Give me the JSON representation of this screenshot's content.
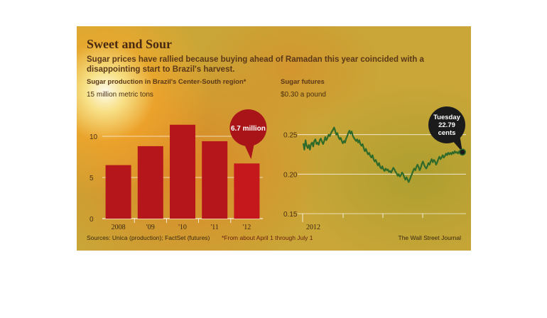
{
  "header": {
    "title": "Sweet and Sour",
    "subtitle": "Sugar prices have rallied because buying ahead of Ramadan this year coincided with a disappointing start to Brazil's harvest."
  },
  "left_chart": {
    "label": "Sugar production in Brazil's Center-South region*",
    "unit_text": "15 million metric tons"
  },
  "right_chart": {
    "label": "Sugar futures",
    "unit_text": "$0.30 a pound"
  },
  "footer": {
    "sources": "Sources: Unica (production); FactSet (futures)",
    "footnote": "*From about April 1 through July 1",
    "credit": "The Wall Street Journal"
  },
  "colors": {
    "bar": "#b5161b",
    "bar_highlight": "#c4181d",
    "line": "#2f6a2a",
    "callout_left": "#a81418",
    "callout_right": "#1b1b1b",
    "grid": "#ffffff"
  },
  "chart_data": [
    {
      "type": "bar",
      "title": "Sugar production in Brazil's Center-South region*",
      "categories": [
        "2008",
        "'09",
        "'10",
        "'11",
        "'12"
      ],
      "values": [
        6.5,
        8.8,
        11.4,
        9.4,
        6.7
      ],
      "ylim": [
        0,
        15
      ],
      "yticks": [
        0,
        5,
        10,
        15
      ],
      "ytick_labels": [
        "0",
        "5",
        "10",
        "15 million metric tons"
      ],
      "grid": true,
      "annotation": {
        "category": "'12",
        "text": "6.7 million"
      }
    },
    {
      "type": "line",
      "title": "Sugar futures",
      "x_label": "2012",
      "x": [
        0,
        1,
        2,
        3,
        4,
        5,
        6,
        7,
        8,
        9,
        10,
        11,
        12,
        13,
        14,
        15,
        16,
        17,
        18,
        19,
        20,
        21,
        22,
        23,
        24,
        25,
        26,
        27,
        28,
        29,
        30,
        31,
        32,
        33,
        34,
        35,
        36,
        37,
        38,
        39,
        40,
        41,
        42,
        43,
        44,
        45,
        46,
        47,
        48,
        49,
        50,
        51,
        52,
        53,
        54,
        55,
        56,
        57,
        58,
        59,
        60,
        61,
        62,
        63,
        64,
        65,
        66,
        67,
        68,
        69,
        70,
        71,
        72,
        73,
        74,
        75,
        76,
        77,
        78,
        79,
        80,
        81,
        82,
        83,
        84,
        85,
        86,
        87,
        88,
        89,
        90,
        91,
        92,
        93,
        94,
        95,
        96,
        97,
        98,
        99,
        100,
        101,
        102,
        103,
        104,
        105,
        106,
        107,
        108,
        109,
        110,
        111,
        112,
        113,
        114,
        115,
        116,
        117,
        118,
        119,
        120,
        121,
        122,
        123,
        124,
        125,
        126,
        127,
        128,
        129,
        130,
        131,
        132,
        133,
        134,
        135,
        136,
        137,
        138,
        139,
        140,
        141,
        142,
        143,
        144,
        145
      ],
      "values": [
        0.239,
        0.231,
        0.243,
        0.236,
        0.233,
        0.237,
        0.231,
        0.238,
        0.24,
        0.235,
        0.242,
        0.244,
        0.238,
        0.24,
        0.237,
        0.243,
        0.245,
        0.241,
        0.238,
        0.242,
        0.247,
        0.243,
        0.246,
        0.25,
        0.248,
        0.251,
        0.254,
        0.256,
        0.259,
        0.255,
        0.25,
        0.252,
        0.247,
        0.244,
        0.246,
        0.242,
        0.239,
        0.242,
        0.24,
        0.245,
        0.248,
        0.252,
        0.255,
        0.251,
        0.254,
        0.249,
        0.246,
        0.244,
        0.242,
        0.244,
        0.24,
        0.243,
        0.238,
        0.236,
        0.238,
        0.233,
        0.229,
        0.232,
        0.228,
        0.225,
        0.227,
        0.223,
        0.221,
        0.224,
        0.219,
        0.216,
        0.218,
        0.214,
        0.211,
        0.214,
        0.209,
        0.207,
        0.21,
        0.206,
        0.204,
        0.207,
        0.205,
        0.206,
        0.203,
        0.204,
        0.202,
        0.205,
        0.208,
        0.206,
        0.203,
        0.201,
        0.198,
        0.2,
        0.197,
        0.199,
        0.202,
        0.2,
        0.196,
        0.193,
        0.196,
        0.193,
        0.19,
        0.193,
        0.197,
        0.2,
        0.204,
        0.207,
        0.205,
        0.209,
        0.212,
        0.209,
        0.205,
        0.208,
        0.213,
        0.216,
        0.212,
        0.209,
        0.207,
        0.21,
        0.214,
        0.212,
        0.216,
        0.219,
        0.215,
        0.218,
        0.216,
        0.212,
        0.215,
        0.219,
        0.222,
        0.219,
        0.221,
        0.224,
        0.221,
        0.223,
        0.226,
        0.224,
        0.227,
        0.225,
        0.227,
        0.225,
        0.228,
        0.226,
        0.229,
        0.227,
        0.228,
        0.226,
        0.229,
        0.227,
        0.228,
        0.2279
      ],
      "ylim": [
        0.15,
        0.3
      ],
      "yticks": [
        0.15,
        0.2,
        0.25,
        0.3
      ],
      "ytick_labels": [
        "0.15",
        "0.20",
        "0.25",
        "$0.30 a pound"
      ],
      "grid": true,
      "annotation": {
        "lines": [
          "Tuesday",
          "22.79",
          "cents"
        ],
        "value": 0.2279
      }
    }
  ]
}
